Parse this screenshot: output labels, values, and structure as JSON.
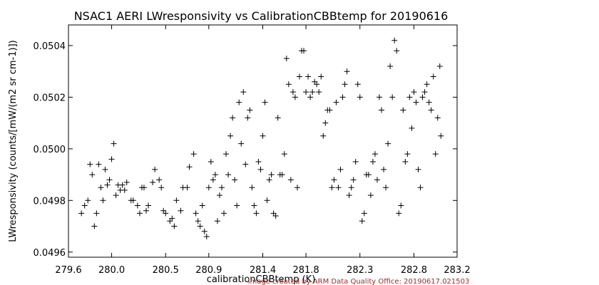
{
  "chart_data": {
    "type": "scatter",
    "title": "NSAC1 AERI LWresponsivity vs CalibrationCBBtemp for 20190616",
    "xlabel": "calibrationCBBtemp (K)",
    "ylabel": "LWresponsivity (counts/[mW/(m2 sr cm-1)])",
    "xlim": [
      279.6,
      283.2
    ],
    "ylim": [
      0.04958,
      0.05048
    ],
    "xticks": [
      "279.6",
      "280.0",
      "280.5",
      "280.9",
      "281.4",
      "281.8",
      "282.3",
      "282.8",
      "283.2"
    ],
    "xtick_values": [
      279.6,
      280.0,
      280.5,
      280.9,
      281.4,
      281.8,
      282.3,
      282.8,
      283.2
    ],
    "yticks": [
      "0.0496",
      "0.0498",
      "0.0500",
      "0.0502",
      "0.0504"
    ],
    "ytick_values": [
      0.0496,
      0.0498,
      0.05,
      0.0502,
      0.0504
    ],
    "marker": "plus",
    "marker_color": "#000000",
    "grid": false,
    "legend": "none",
    "series": [
      {
        "x": [
          279.72,
          279.78,
          279.82,
          279.86,
          279.9,
          279.94,
          279.98,
          280.02,
          280.06,
          280.1,
          280.14,
          280.2,
          280.26,
          280.3,
          280.34,
          280.4,
          280.46,
          280.5,
          280.56,
          280.6,
          280.66,
          280.72,
          280.78,
          280.82,
          280.86,
          280.9,
          280.94,
          280.98,
          281.02,
          281.06,
          281.1,
          281.14,
          281.18,
          281.22,
          281.26,
          281.3,
          281.34,
          281.38,
          281.42,
          281.46,
          281.5,
          281.54,
          281.58,
          281.62,
          281.66,
          281.7,
          281.74,
          281.78,
          281.82,
          281.86,
          281.9,
          281.94,
          281.98,
          282.02,
          282.06,
          282.1,
          282.14,
          282.18,
          282.22,
          282.26,
          282.3,
          282.34,
          282.38,
          282.42,
          282.46,
          282.5,
          282.54,
          282.58,
          282.62,
          282.66,
          282.7,
          282.74,
          282.78,
          282.82,
          282.86,
          282.9,
          282.94,
          282.98,
          283.02,
          283.05
        ],
        "y": [
          0.04975,
          0.0498,
          0.0499,
          0.04975,
          0.04985,
          0.04992,
          0.04988,
          0.05002,
          0.04986,
          0.04986,
          0.04987,
          0.0498,
          0.04975,
          0.04985,
          0.04978,
          0.04992,
          0.04985,
          0.04975,
          0.04973,
          0.0498,
          0.04985,
          0.04993,
          0.04975,
          0.0497,
          0.04968,
          0.04985,
          0.04988,
          0.04972,
          0.04985,
          0.04998,
          0.05005,
          0.04988,
          0.05018,
          0.05022,
          0.05012,
          0.04985,
          0.04975,
          0.04992,
          0.05018,
          0.04988,
          0.04975,
          0.05012,
          0.0499,
          0.05035,
          0.04988,
          0.0502,
          0.05028,
          0.05038,
          0.05028,
          0.05022,
          0.05025,
          0.05028,
          0.0501,
          0.05015,
          0.04988,
          0.04985,
          0.0502,
          0.0503,
          0.04985,
          0.04995,
          0.0502,
          0.04975,
          0.0499,
          0.04995,
          0.04988,
          0.05015,
          0.04985,
          0.05032,
          0.05042,
          0.04975,
          0.05015,
          0.04998,
          0.05008,
          0.05018,
          0.04985,
          0.05022,
          0.05018,
          0.05028,
          0.05012,
          0.05005
        ]
      },
      {
        "x": [
          279.75,
          279.8,
          279.84,
          279.88,
          279.92,
          279.96,
          280.0,
          280.04,
          280.08,
          280.12,
          280.18,
          280.24,
          280.28,
          280.32,
          280.38,
          280.44,
          280.48,
          280.54,
          280.58,
          280.64,
          280.7,
          280.76,
          280.8,
          280.84,
          280.88,
          280.92,
          280.96,
          281.0,
          281.04,
          281.08,
          281.12,
          281.16,
          281.2,
          281.24,
          281.28,
          281.32,
          281.36,
          281.4,
          281.44,
          281.48,
          281.52,
          281.56,
          281.6,
          281.64,
          281.68,
          281.72,
          281.76,
          281.8,
          281.84,
          281.88,
          281.92,
          281.96,
          282.0,
          282.04,
          282.08,
          282.12,
          282.16,
          282.2,
          282.24,
          282.28,
          282.32,
          282.36,
          282.4,
          282.44,
          282.48,
          282.52,
          282.56,
          282.6,
          282.64,
          282.68,
          282.72,
          282.76,
          282.8,
          282.84,
          282.88,
          282.92,
          282.96,
          283.0,
          283.04
        ],
        "y": [
          0.04978,
          0.04994,
          0.0497,
          0.04994,
          0.0498,
          0.04986,
          0.04996,
          0.04982,
          0.04984,
          0.04984,
          0.0498,
          0.04978,
          0.04985,
          0.04976,
          0.04987,
          0.04988,
          0.04976,
          0.04972,
          0.0497,
          0.04976,
          0.04985,
          0.04998,
          0.04972,
          0.04978,
          0.04966,
          0.04995,
          0.0499,
          0.04982,
          0.04975,
          0.0499,
          0.05012,
          0.04978,
          0.05002,
          0.04994,
          0.05015,
          0.04978,
          0.04995,
          0.05005,
          0.0498,
          0.0499,
          0.04974,
          0.0499,
          0.04998,
          0.05025,
          0.05022,
          0.04985,
          0.05038,
          0.05022,
          0.0502,
          0.05026,
          0.05022,
          0.05005,
          0.05015,
          0.04985,
          0.05018,
          0.04992,
          0.05025,
          0.04982,
          0.04988,
          0.05025,
          0.04972,
          0.0499,
          0.04982,
          0.04998,
          0.0502,
          0.04992,
          0.05002,
          0.0502,
          0.05038,
          0.04978,
          0.04995,
          0.0502,
          0.05022,
          0.04992,
          0.0502,
          0.05025,
          0.05015,
          0.04998,
          0.05032
        ]
      }
    ]
  },
  "footer": {
    "credit": "Image created by ARM Data Quality Office: 20190617.021503"
  }
}
